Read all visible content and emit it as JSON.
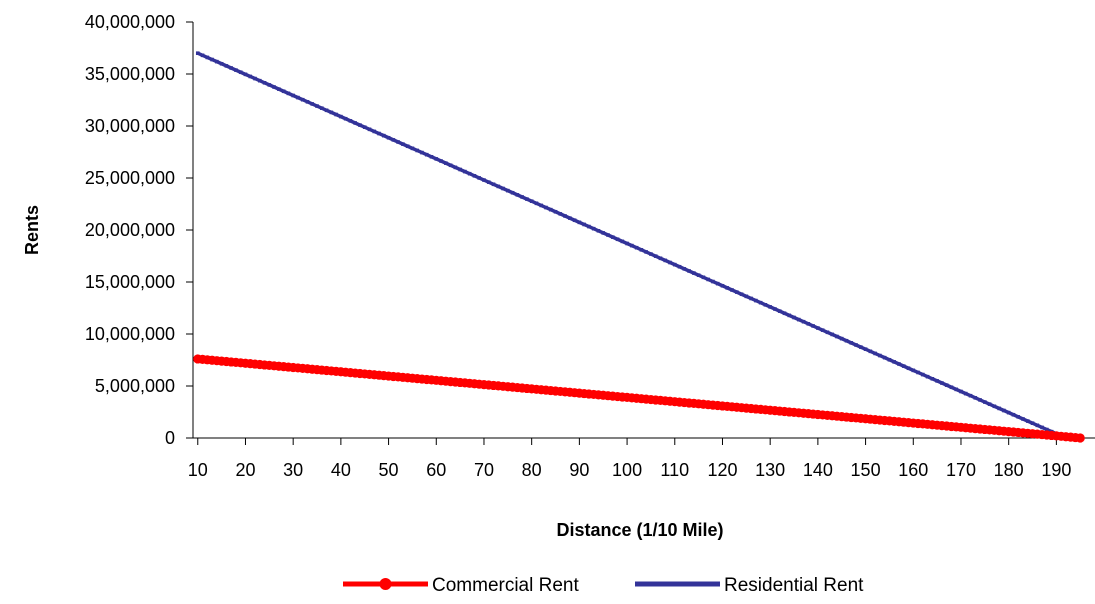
{
  "chart_data": {
    "type": "line",
    "title": "",
    "xlabel": "Distance (1/10 Mile)",
    "ylabel": "Rents",
    "x_tick_labels": [
      "10",
      "20",
      "30",
      "40",
      "50",
      "60",
      "70",
      "80",
      "90",
      "100",
      "110",
      "120",
      "130",
      "140",
      "150",
      "160",
      "170",
      "180",
      "190"
    ],
    "y_tick_labels": [
      "0",
      "5,000,000",
      "10,000,000",
      "15,000,000",
      "20,000,000",
      "25,000,000",
      "30,000,000",
      "35,000,000",
      "40,000,000"
    ],
    "xlim": [
      9,
      196
    ],
    "ylim": [
      0,
      40000000
    ],
    "grid": false,
    "legend_position": "bottom",
    "series": [
      {
        "name": "Commercial Rent",
        "color": "#ff0000",
        "marker": "circle",
        "x_start": 10,
        "x_end": 195,
        "x_step": 1,
        "y_start": 7600000,
        "y_end": 0
      },
      {
        "name": "Residential Rent",
        "color": "#333399",
        "marker": "small-square",
        "x_start": 10,
        "x_end": 192,
        "x_step": 1,
        "y_start": 37000000,
        "y_end": 0
      }
    ]
  }
}
